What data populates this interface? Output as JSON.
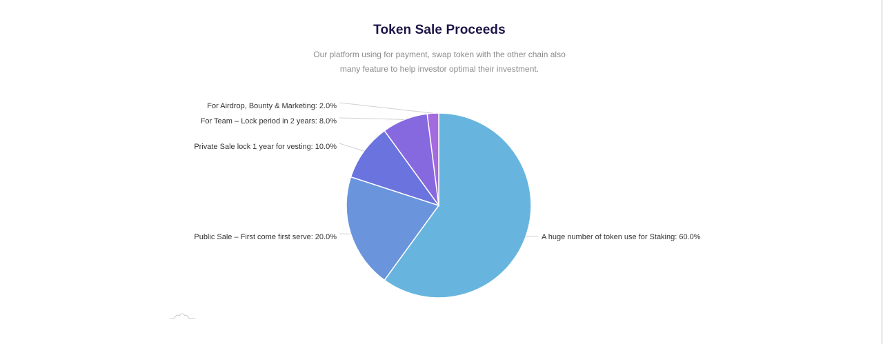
{
  "header": {
    "title": "Token Sale Proceeds",
    "subtitle_line1": "Our platform using for payment, swap token with the other chain also",
    "subtitle_line2": "many feature to help investor optimal their investment."
  },
  "chart_data": {
    "type": "pie",
    "title": "Token Sale Proceeds",
    "slices": [
      {
        "label": "A huge number of token use for Staking: 60.0%",
        "value": 60.0,
        "color": "#67b5de"
      },
      {
        "label": "Public Sale – First come first serve: 20.0%",
        "value": 20.0,
        "color": "#6a95dd"
      },
      {
        "label": "Private Sale lock 1 year for vesting: 10.0%",
        "value": 10.0,
        "color": "#6a73de"
      },
      {
        "label": "For Team – Lock period in 2 years: 8.0%",
        "value": 8.0,
        "color": "#8669de"
      },
      {
        "label": "For Airdrop, Bounty & Marketing: 2.0%",
        "value": 2.0,
        "color": "#a56ade"
      }
    ],
    "start_angle": "top",
    "direction": "clockwise",
    "slice_border_color": "#ffffff",
    "leader_line_color": "#d0d0d0"
  }
}
